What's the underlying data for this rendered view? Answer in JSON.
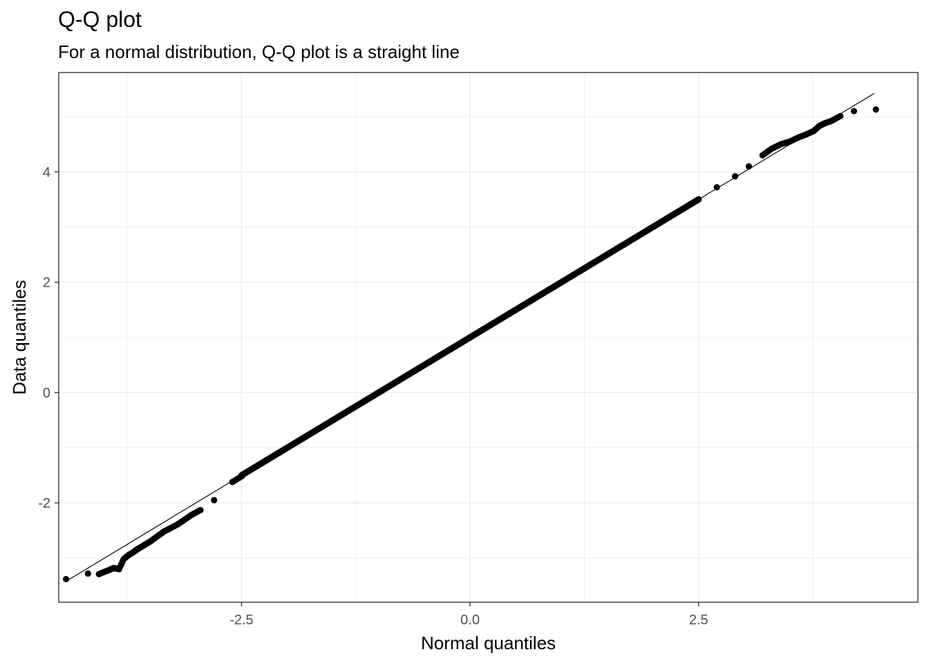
{
  "chart_data": {
    "type": "scatter",
    "title": "Q-Q plot",
    "subtitle": "For a normal distribution, Q-Q plot is a straight line",
    "xlabel": "Normal quantiles",
    "ylabel": "Data quantiles",
    "xlim": [
      -4.5,
      4.9
    ],
    "ylim": [
      -3.8,
      5.8
    ],
    "x_ticks": [
      -2.5,
      0.0,
      2.5
    ],
    "x_tick_labels": [
      "-2.5",
      "0.0",
      "2.5"
    ],
    "y_ticks": [
      -2,
      0,
      2,
      4
    ],
    "y_tick_labels": [
      "-2",
      "0",
      "2",
      "4"
    ],
    "grid": true,
    "legend": "none",
    "reference_line": {
      "intercept": 1.0,
      "slope": 1.0,
      "x_range": [
        -4.42,
        4.42
      ]
    },
    "series": [
      {
        "marker_color": "#000000",
        "points": [
          [
            -4.42,
            -3.38
          ],
          [
            -4.18,
            -3.28
          ],
          [
            -4.06,
            -3.29
          ],
          [
            -3.97,
            -3.23
          ],
          [
            -3.9,
            -3.18
          ],
          [
            -3.84,
            -3.2
          ],
          [
            -3.79,
            -3.02
          ],
          [
            -3.74,
            -2.95
          ],
          [
            -3.69,
            -2.9
          ],
          [
            -3.65,
            -2.85
          ],
          [
            -3.6,
            -2.8
          ],
          [
            -3.55,
            -2.75
          ],
          [
            -3.5,
            -2.7
          ],
          [
            -3.45,
            -2.64
          ],
          [
            -3.4,
            -2.58
          ],
          [
            -3.35,
            -2.52
          ],
          [
            -3.28,
            -2.46
          ],
          [
            -3.2,
            -2.39
          ],
          [
            -3.12,
            -2.3
          ],
          [
            -3.05,
            -2.22
          ],
          [
            -2.95,
            -2.13
          ],
          [
            -2.8,
            -1.95
          ],
          [
            -2.6,
            -1.62
          ],
          [
            -2.5,
            -1.52
          ],
          [
            2.5,
            3.5
          ],
          [
            2.7,
            3.72
          ],
          [
            2.9,
            3.92
          ],
          [
            3.05,
            4.1
          ],
          [
            3.2,
            4.3
          ],
          [
            3.3,
            4.42
          ],
          [
            3.4,
            4.5
          ],
          [
            3.5,
            4.55
          ],
          [
            3.6,
            4.63
          ],
          [
            3.68,
            4.68
          ],
          [
            3.76,
            4.74
          ],
          [
            3.82,
            4.83
          ],
          [
            3.88,
            4.88
          ],
          [
            3.95,
            4.92
          ],
          [
            4.05,
            5.01
          ],
          [
            4.2,
            5.1
          ],
          [
            4.44,
            5.13
          ]
        ],
        "dense_segment": {
          "x_from": -2.5,
          "x_to": 2.5,
          "intercept": 1.0,
          "slope": 1.0
        }
      }
    ]
  }
}
